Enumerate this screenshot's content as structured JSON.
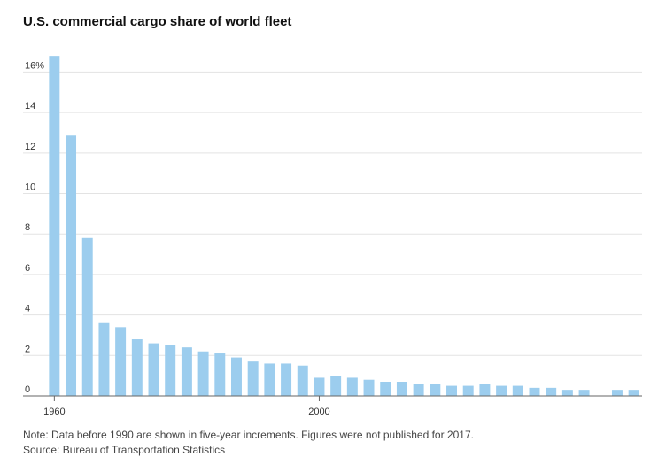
{
  "chart_data": {
    "type": "bar",
    "title": "U.S. commercial cargo share of world fleet",
    "xlabel": "",
    "ylabel": "",
    "ylim": [
      0,
      16.5
    ],
    "yticks": [
      {
        "value": 0,
        "label": "0"
      },
      {
        "value": 2,
        "label": "2"
      },
      {
        "value": 4,
        "label": "4"
      },
      {
        "value": 6,
        "label": "6"
      },
      {
        "value": 8,
        "label": "8"
      },
      {
        "value": 10,
        "label": "10"
      },
      {
        "value": 12,
        "label": "12"
      },
      {
        "value": 14,
        "label": "14"
      },
      {
        "value": 16,
        "label": "16%"
      }
    ],
    "x_tick_labels": [
      {
        "category": "1960",
        "label": "1960"
      },
      {
        "category": "2000",
        "label": "2000"
      }
    ],
    "grid": true,
    "bar_color": "#9ccdee",
    "categories": [
      "1960",
      "1965",
      "1970",
      "1975",
      "1980",
      "1985",
      "1990",
      "1991",
      "1992",
      "1993",
      "1994",
      "1995",
      "1996",
      "1997",
      "1998",
      "1999",
      "2000",
      "2001",
      "2002",
      "2003",
      "2004",
      "2005",
      "2006",
      "2007",
      "2008",
      "2009",
      "2010",
      "2011",
      "2012",
      "2013",
      "2014",
      "2015",
      "2016",
      "2017",
      "2018",
      "2019"
    ],
    "values": [
      16.8,
      12.9,
      7.8,
      3.6,
      3.4,
      2.8,
      2.6,
      2.5,
      2.4,
      2.2,
      2.1,
      1.9,
      1.7,
      1.6,
      1.6,
      1.5,
      0.9,
      1.0,
      0.9,
      0.8,
      0.7,
      0.7,
      0.6,
      0.6,
      0.5,
      0.5,
      0.6,
      0.5,
      0.5,
      0.4,
      0.4,
      0.3,
      0.3,
      null,
      0.3,
      0.3
    ]
  },
  "footer": {
    "note": "Note: Data before 1990 are shown in five-year increments. Figures were not published for 2017.",
    "source": "Source: Bureau of Transportation Statistics"
  }
}
